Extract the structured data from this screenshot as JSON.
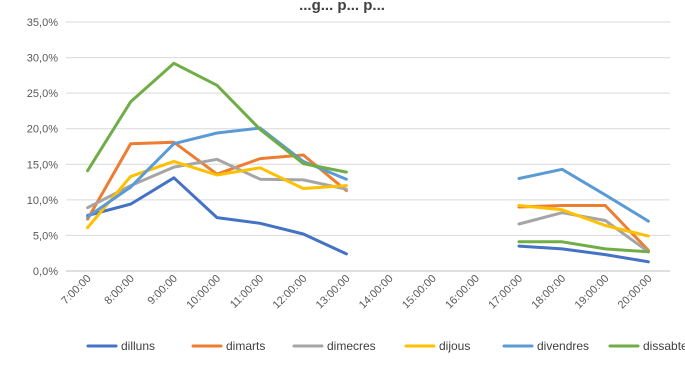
{
  "chart_data": {
    "type": "line",
    "title": "...g... p... p...",
    "y_ticks": [
      "0,0%",
      "5,0%",
      "10,0%",
      "15,0%",
      "20,0%",
      "25,0%",
      "30,0%",
      "35,0%"
    ],
    "ylim": [
      0,
      35
    ],
    "categories": [
      "7:00:00",
      "8:00:00",
      "9:00:00",
      "10:00:00",
      "11:00:00",
      "12:00:00",
      "13:00:00",
      "14:00:00",
      "15:00:00",
      "16:00:00",
      "17:00:00",
      "18:00:00",
      "19:00:00",
      "20:00:00"
    ],
    "grid": true,
    "legend_position": "bottom",
    "series": [
      {
        "name": "dilluns",
        "color": "#4472C4",
        "values": [
          7.8,
          9.4,
          13.1,
          7.5,
          6.7,
          5.2,
          2.4,
          null,
          null,
          null,
          3.5,
          3.1,
          2.3,
          1.3
        ]
      },
      {
        "name": "dimarts",
        "color": "#ED7D31",
        "values": [
          7.3,
          17.9,
          18.1,
          13.6,
          15.8,
          16.3,
          11.3,
          null,
          null,
          null,
          9.0,
          9.2,
          9.2,
          2.9
        ]
      },
      {
        "name": "dimecres",
        "color": "#A5A5A5",
        "values": [
          8.9,
          12.0,
          14.6,
          15.7,
          12.9,
          12.8,
          11.5,
          null,
          null,
          null,
          6.6,
          8.2,
          7.1,
          2.7
        ]
      },
      {
        "name": "dijous",
        "color": "#FFC000",
        "values": [
          6.1,
          13.3,
          15.4,
          13.5,
          14.5,
          11.6,
          12.0,
          null,
          null,
          null,
          9.2,
          8.6,
          6.4,
          4.9
        ]
      },
      {
        "name": "divendres",
        "color": "#5B9BD5",
        "values": [
          7.6,
          11.8,
          17.9,
          19.4,
          20.1,
          15.4,
          12.9,
          null,
          null,
          null,
          13.0,
          14.3,
          10.7,
          7.0
        ]
      },
      {
        "name": "dissabte",
        "color": "#70AD47",
        "values": [
          14.1,
          23.8,
          29.2,
          26.1,
          19.9,
          15.1,
          13.9,
          null,
          null,
          null,
          4.1,
          4.1,
          3.1,
          2.7
        ]
      }
    ]
  }
}
